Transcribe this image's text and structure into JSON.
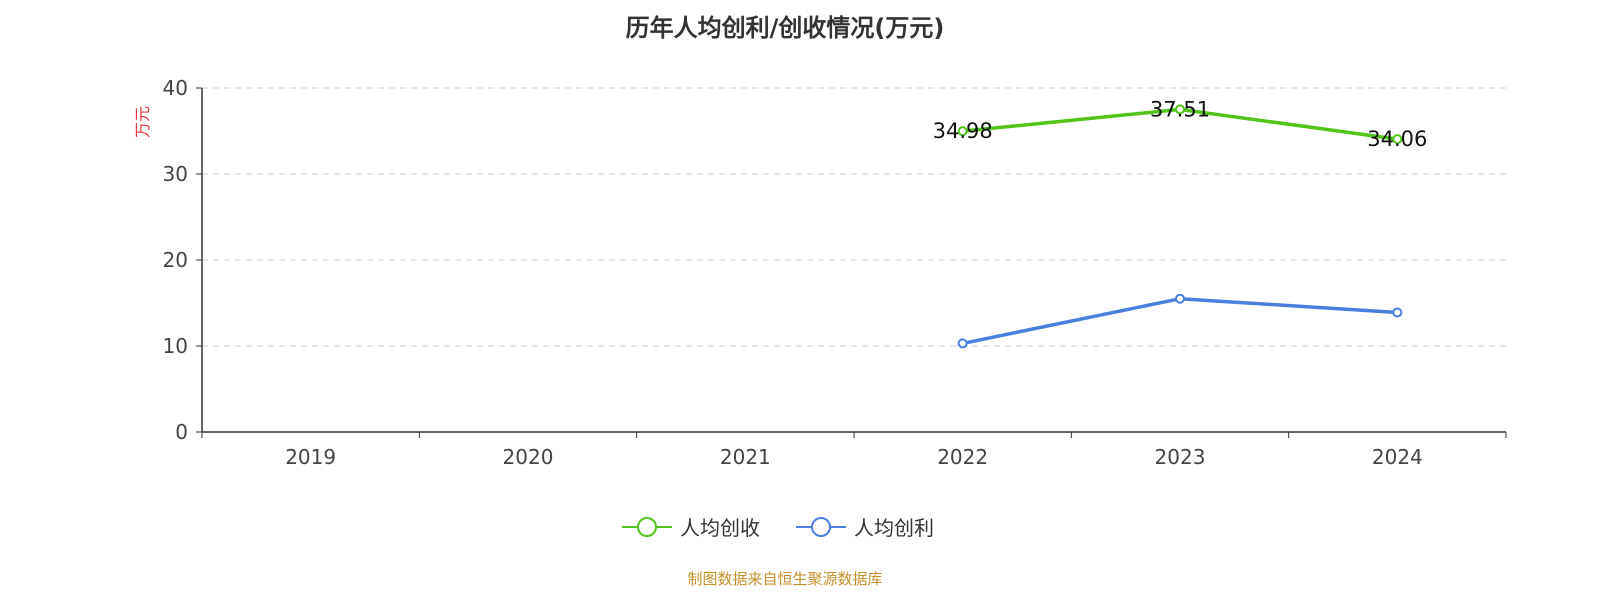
{
  "chart_data": {
    "type": "line",
    "title": "历年人均创利/创收情况(万元)",
    "ylabel": "万元",
    "ylim": [
      0,
      40
    ],
    "yticks": [
      0,
      10,
      20,
      30,
      40
    ],
    "categories": [
      "2019",
      "2020",
      "2021",
      "2022",
      "2023",
      "2024"
    ],
    "series": [
      {
        "name": "人均创收",
        "color": "#52c41a",
        "values": [
          null,
          null,
          null,
          34.98,
          37.51,
          34.06
        ],
        "labels": [
          "",
          "",
          "",
          "34.98",
          "37.51",
          "34.06"
        ]
      },
      {
        "name": "人均创利",
        "color": "#4a7fe0",
        "values": [
          null,
          null,
          null,
          10.3,
          15.5,
          13.9
        ]
      }
    ],
    "grid": true,
    "legend": "bottom-center"
  },
  "source": "制图数据来自恒生聚源数据库"
}
